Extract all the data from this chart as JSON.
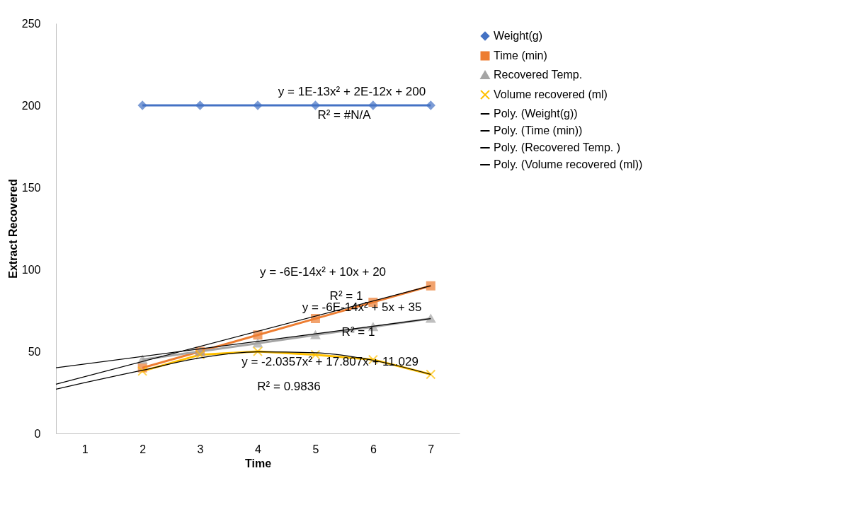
{
  "chart_data": {
    "type": "line",
    "xlabel": "Time",
    "ylabel": "Extract Recovered",
    "x": [
      2,
      3,
      4,
      5,
      6,
      7
    ],
    "xlim": [
      0.5,
      7.5
    ],
    "xticks": [
      1,
      2,
      3,
      4,
      5,
      6,
      7
    ],
    "ylim": [
      0,
      250
    ],
    "yticks": [
      0,
      50,
      100,
      150,
      200,
      250
    ],
    "grid": false,
    "legend": "right",
    "series": [
      {
        "name": "Weight(g)",
        "color": "#4472c4",
        "marker": "diamond",
        "values": [
          200,
          200,
          200,
          200,
          200,
          200
        ]
      },
      {
        "name": "Time (min)",
        "color": "#ed7d31",
        "marker": "square",
        "values": [
          40,
          50,
          60,
          70,
          80,
          90
        ]
      },
      {
        "name": "Recovered Temp.",
        "color": "#a5a5a5",
        "marker": "triangle",
        "values": [
          45,
          50,
          55,
          60,
          65,
          70
        ]
      },
      {
        "name": "Volume recovered (ml)",
        "color": "#ffc000",
        "marker": "cross",
        "values": [
          38,
          48,
          50,
          48,
          45,
          36
        ]
      },
      {
        "name": "Poly. (Weight(g))",
        "color": "#000000",
        "marker": "none",
        "values": [
          null,
          null,
          null,
          null,
          null,
          null
        ]
      },
      {
        "name": "Poly. (Time (min))",
        "color": "#000000",
        "marker": "none",
        "x": [
          0.5,
          7
        ],
        "values": [
          30,
          90
        ]
      },
      {
        "name": "Poly. (Recovered Temp. )",
        "color": "#000000",
        "marker": "none",
        "x": [
          0.5,
          7
        ],
        "values": [
          40,
          70
        ]
      },
      {
        "name": "Poly. (Volume recovered (ml))",
        "color": "#000000",
        "marker": "none",
        "x": [
          0.5,
          1,
          2,
          3,
          4,
          5,
          6,
          7
        ],
        "values": [
          27,
          31,
          38.5,
          46.1,
          49.7,
          49.2,
          44.6,
          36
        ]
      }
    ],
    "annotations": [
      "y = 1E-13x² + 2E-12x + 200",
      "R² = #N/A",
      "y = -6E-14x² + 10x + 20",
      "R² = 1",
      "y = -6E-14x² + 5x + 35",
      "R² = 1",
      "y = -2.0357x² + 17.807x + 11.029",
      "R² = 0.9836"
    ]
  }
}
